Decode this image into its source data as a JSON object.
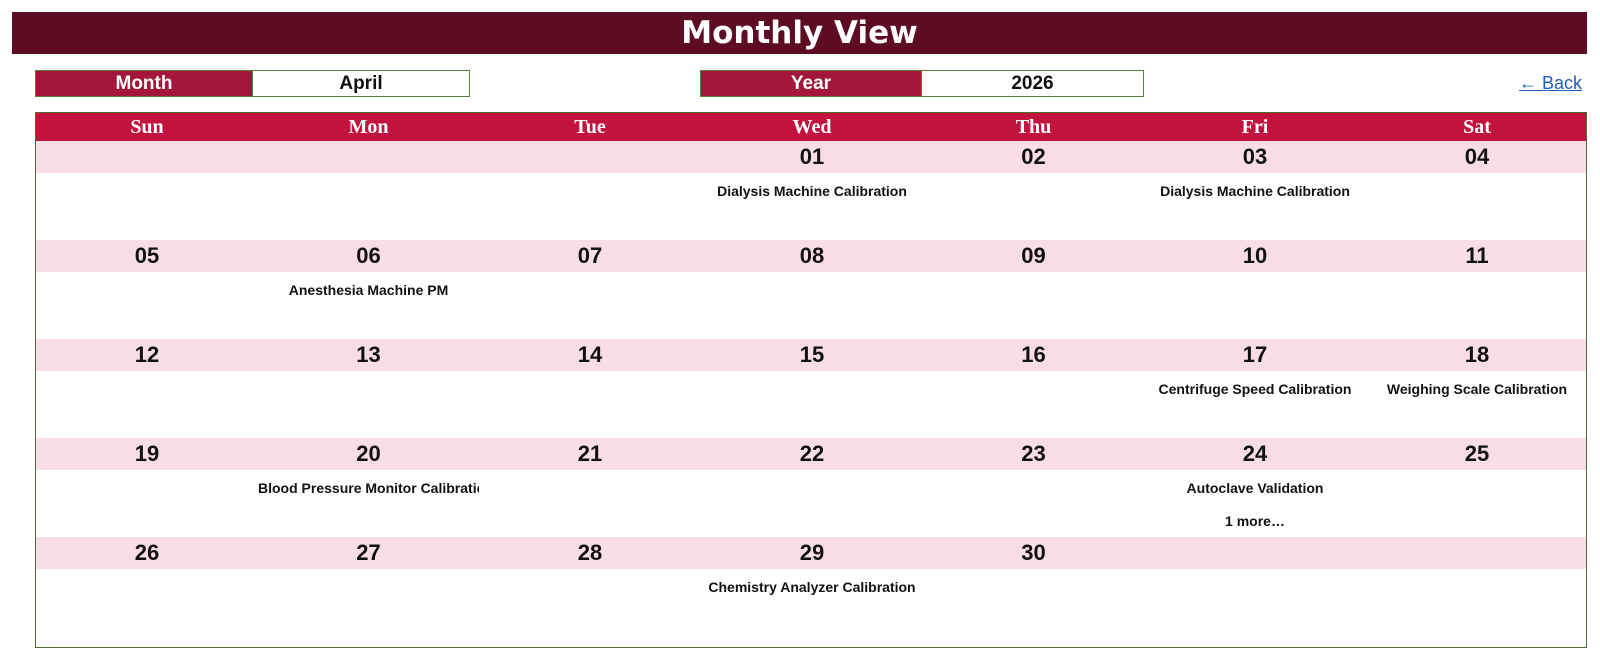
{
  "title": "Monthly View",
  "month_selector": {
    "label": "Month",
    "value": "April"
  },
  "year_selector": {
    "label": "Year",
    "value": "2026"
  },
  "back_link": "← Back",
  "weekdays": [
    "Sun",
    "Mon",
    "Tue",
    "Wed",
    "Thu",
    "Fri",
    "Sat"
  ],
  "weeks": [
    [
      {
        "day": "",
        "events": []
      },
      {
        "day": "",
        "events": []
      },
      {
        "day": "",
        "events": []
      },
      {
        "day": "01",
        "events": [
          "Dialysis Machine Calibration"
        ]
      },
      {
        "day": "02",
        "events": []
      },
      {
        "day": "03",
        "events": [
          "Dialysis Machine Calibration"
        ]
      },
      {
        "day": "04",
        "events": []
      }
    ],
    [
      {
        "day": "05",
        "events": []
      },
      {
        "day": "06",
        "events": [
          "Anesthesia Machine PM"
        ]
      },
      {
        "day": "07",
        "events": []
      },
      {
        "day": "08",
        "events": []
      },
      {
        "day": "09",
        "events": []
      },
      {
        "day": "10",
        "events": []
      },
      {
        "day": "11",
        "events": []
      }
    ],
    [
      {
        "day": "12",
        "events": []
      },
      {
        "day": "13",
        "events": []
      },
      {
        "day": "14",
        "events": []
      },
      {
        "day": "15",
        "events": []
      },
      {
        "day": "16",
        "events": []
      },
      {
        "day": "17",
        "events": [
          "Centrifuge Speed Calibration"
        ]
      },
      {
        "day": "18",
        "events": [
          "Weighing Scale Calibration"
        ]
      }
    ],
    [
      {
        "day": "19",
        "events": []
      },
      {
        "day": "20",
        "events": [
          "Blood Pressure Monitor Calibration"
        ]
      },
      {
        "day": "21",
        "events": []
      },
      {
        "day": "22",
        "events": []
      },
      {
        "day": "23",
        "events": []
      },
      {
        "day": "24",
        "events": [
          "Autoclave Validation",
          "1 more…"
        ]
      },
      {
        "day": "25",
        "events": []
      }
    ],
    [
      {
        "day": "26",
        "events": []
      },
      {
        "day": "27",
        "events": []
      },
      {
        "day": "28",
        "events": []
      },
      {
        "day": "29",
        "events": [
          "Chemistry Analyzer Calibration"
        ]
      },
      {
        "day": "30",
        "events": []
      },
      {
        "day": "",
        "events": []
      },
      {
        "day": "",
        "events": []
      }
    ]
  ],
  "colors": {
    "title_bg": "#5e0b24",
    "label_bg": "#a4163c",
    "weekday_bg": "#c1133d",
    "day_band_bg": "#f8dde4",
    "border": "#4e6b32",
    "link": "#1f5fbf"
  }
}
